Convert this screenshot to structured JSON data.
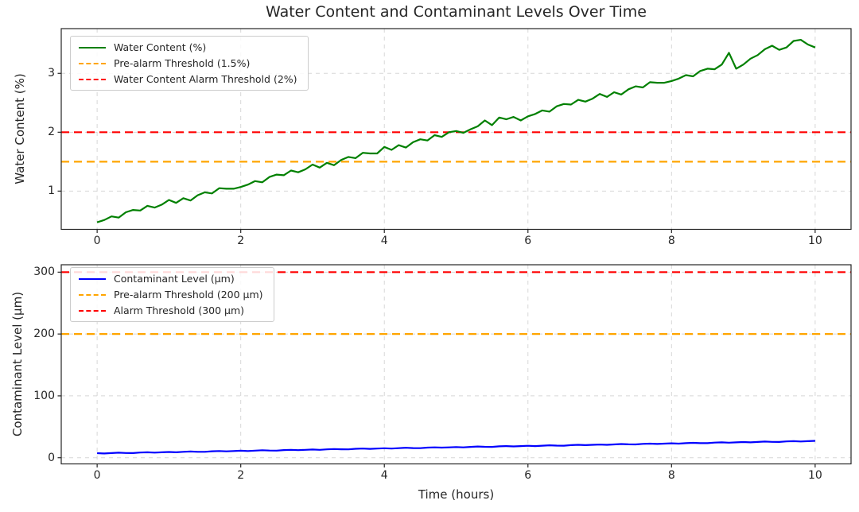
{
  "title": "Water Content and Contaminant Levels Over Time",
  "chart_data": [
    {
      "type": "line",
      "title": "",
      "xlabel": "",
      "ylabel": "Water Content (%)",
      "xlim": [
        -0.5,
        10.5
      ],
      "ylim": [
        0.35,
        3.76
      ],
      "xticks": [
        0,
        2,
        4,
        6,
        8,
        10
      ],
      "yticks": [
        1,
        2,
        3
      ],
      "grid": true,
      "grid_style": "dashed",
      "legend_position": "upper left",
      "x_start": 0,
      "x_step": 0.1,
      "series": [
        {
          "id": "water-content-line",
          "name": "Water Content (%)",
          "color": "#008000",
          "style": "solid",
          "values": [
            0.47,
            0.51,
            0.57,
            0.55,
            0.64,
            0.68,
            0.67,
            0.75,
            0.72,
            0.77,
            0.85,
            0.8,
            0.88,
            0.84,
            0.93,
            0.98,
            0.96,
            1.05,
            1.04,
            1.04,
            1.07,
            1.11,
            1.17,
            1.15,
            1.24,
            1.28,
            1.27,
            1.35,
            1.32,
            1.37,
            1.45,
            1.4,
            1.48,
            1.44,
            1.53,
            1.58,
            1.56,
            1.65,
            1.64,
            1.64,
            1.75,
            1.7,
            1.78,
            1.74,
            1.83,
            1.88,
            1.86,
            1.95,
            1.92,
            2.0,
            2.02,
            1.99,
            2.05,
            2.1,
            2.2,
            2.12,
            2.25,
            2.22,
            2.26,
            2.2,
            2.27,
            2.31,
            2.37,
            2.35,
            2.44,
            2.48,
            2.47,
            2.55,
            2.52,
            2.57,
            2.65,
            2.6,
            2.68,
            2.64,
            2.73,
            2.78,
            2.76,
            2.85,
            2.84,
            2.84,
            2.87,
            2.91,
            2.97,
            2.95,
            3.04,
            3.08,
            3.07,
            3.15,
            3.35,
            3.08,
            3.15,
            3.25,
            3.31,
            3.41,
            3.47,
            3.4,
            3.44,
            3.55,
            3.57,
            3.49,
            3.44
          ]
        }
      ],
      "thresholds": [
        {
          "id": "water-pre-alarm-threshold-line",
          "name": "Pre-alarm Threshold (1.5%)",
          "value": 1.5,
          "color": "#FFA500",
          "style": "dashed"
        },
        {
          "id": "water-alarm-threshold-line",
          "name": "Water Content Alarm Threshold (2%)",
          "value": 2,
          "color": "#FF0000",
          "style": "dashed"
        }
      ]
    },
    {
      "type": "line",
      "title": "",
      "xlabel": "Time (hours)",
      "ylabel": "Contaminant Level (µm)",
      "xlim": [
        -0.5,
        10.5
      ],
      "ylim": [
        -10,
        312
      ],
      "xticks": [
        0,
        2,
        4,
        6,
        8,
        10
      ],
      "yticks": [
        0,
        100,
        200,
        300
      ],
      "grid": true,
      "grid_style": "dashed",
      "legend_position": "upper left",
      "x_start": 0,
      "x_step": 0.1,
      "series": [
        {
          "id": "contaminant-level-line",
          "name": "Contaminant Level (µm)",
          "color": "#0000FF",
          "style": "solid",
          "values": [
            7.3,
            6.8,
            7.5,
            8.1,
            7.6,
            7.5,
            8.4,
            8.8,
            8.3,
            8.8,
            9.3,
            8.8,
            9.5,
            10.1,
            9.6,
            9.5,
            10.4,
            10.8,
            10.3,
            10.8,
            11.3,
            10.8,
            11.5,
            12.1,
            11.6,
            11.5,
            12.4,
            12.8,
            12.3,
            12.8,
            13.3,
            12.8,
            13.5,
            14.1,
            13.6,
            13.5,
            14.4,
            14.8,
            14.3,
            14.8,
            15.3,
            14.8,
            15.5,
            16.1,
            15.6,
            15.5,
            16.4,
            16.8,
            16.3,
            16.8,
            17.3,
            16.8,
            17.5,
            18.1,
            17.6,
            17.5,
            18.4,
            18.8,
            18.3,
            18.8,
            19.3,
            18.8,
            19.5,
            20.1,
            19.6,
            19.5,
            20.4,
            20.8,
            20.3,
            20.8,
            21.3,
            20.8,
            21.5,
            22.1,
            21.6,
            21.5,
            22.4,
            22.8,
            22.3,
            22.8,
            23.3,
            22.8,
            23.5,
            24.1,
            23.6,
            23.5,
            24.4,
            24.8,
            24.3,
            24.8,
            25.3,
            24.8,
            25.5,
            26.1,
            25.6,
            25.5,
            26.4,
            26.8,
            26.3,
            26.8,
            27.3
          ]
        }
      ],
      "thresholds": [
        {
          "id": "contaminant-pre-alarm-threshold-line",
          "name": "Pre-alarm Threshold (200 µm)",
          "value": 200,
          "color": "#FFA500",
          "style": "dashed"
        },
        {
          "id": "contaminant-alarm-threshold-line",
          "name": "Alarm Threshold (300 µm)",
          "value": 300,
          "color": "#FF0000",
          "style": "dashed"
        }
      ]
    }
  ]
}
